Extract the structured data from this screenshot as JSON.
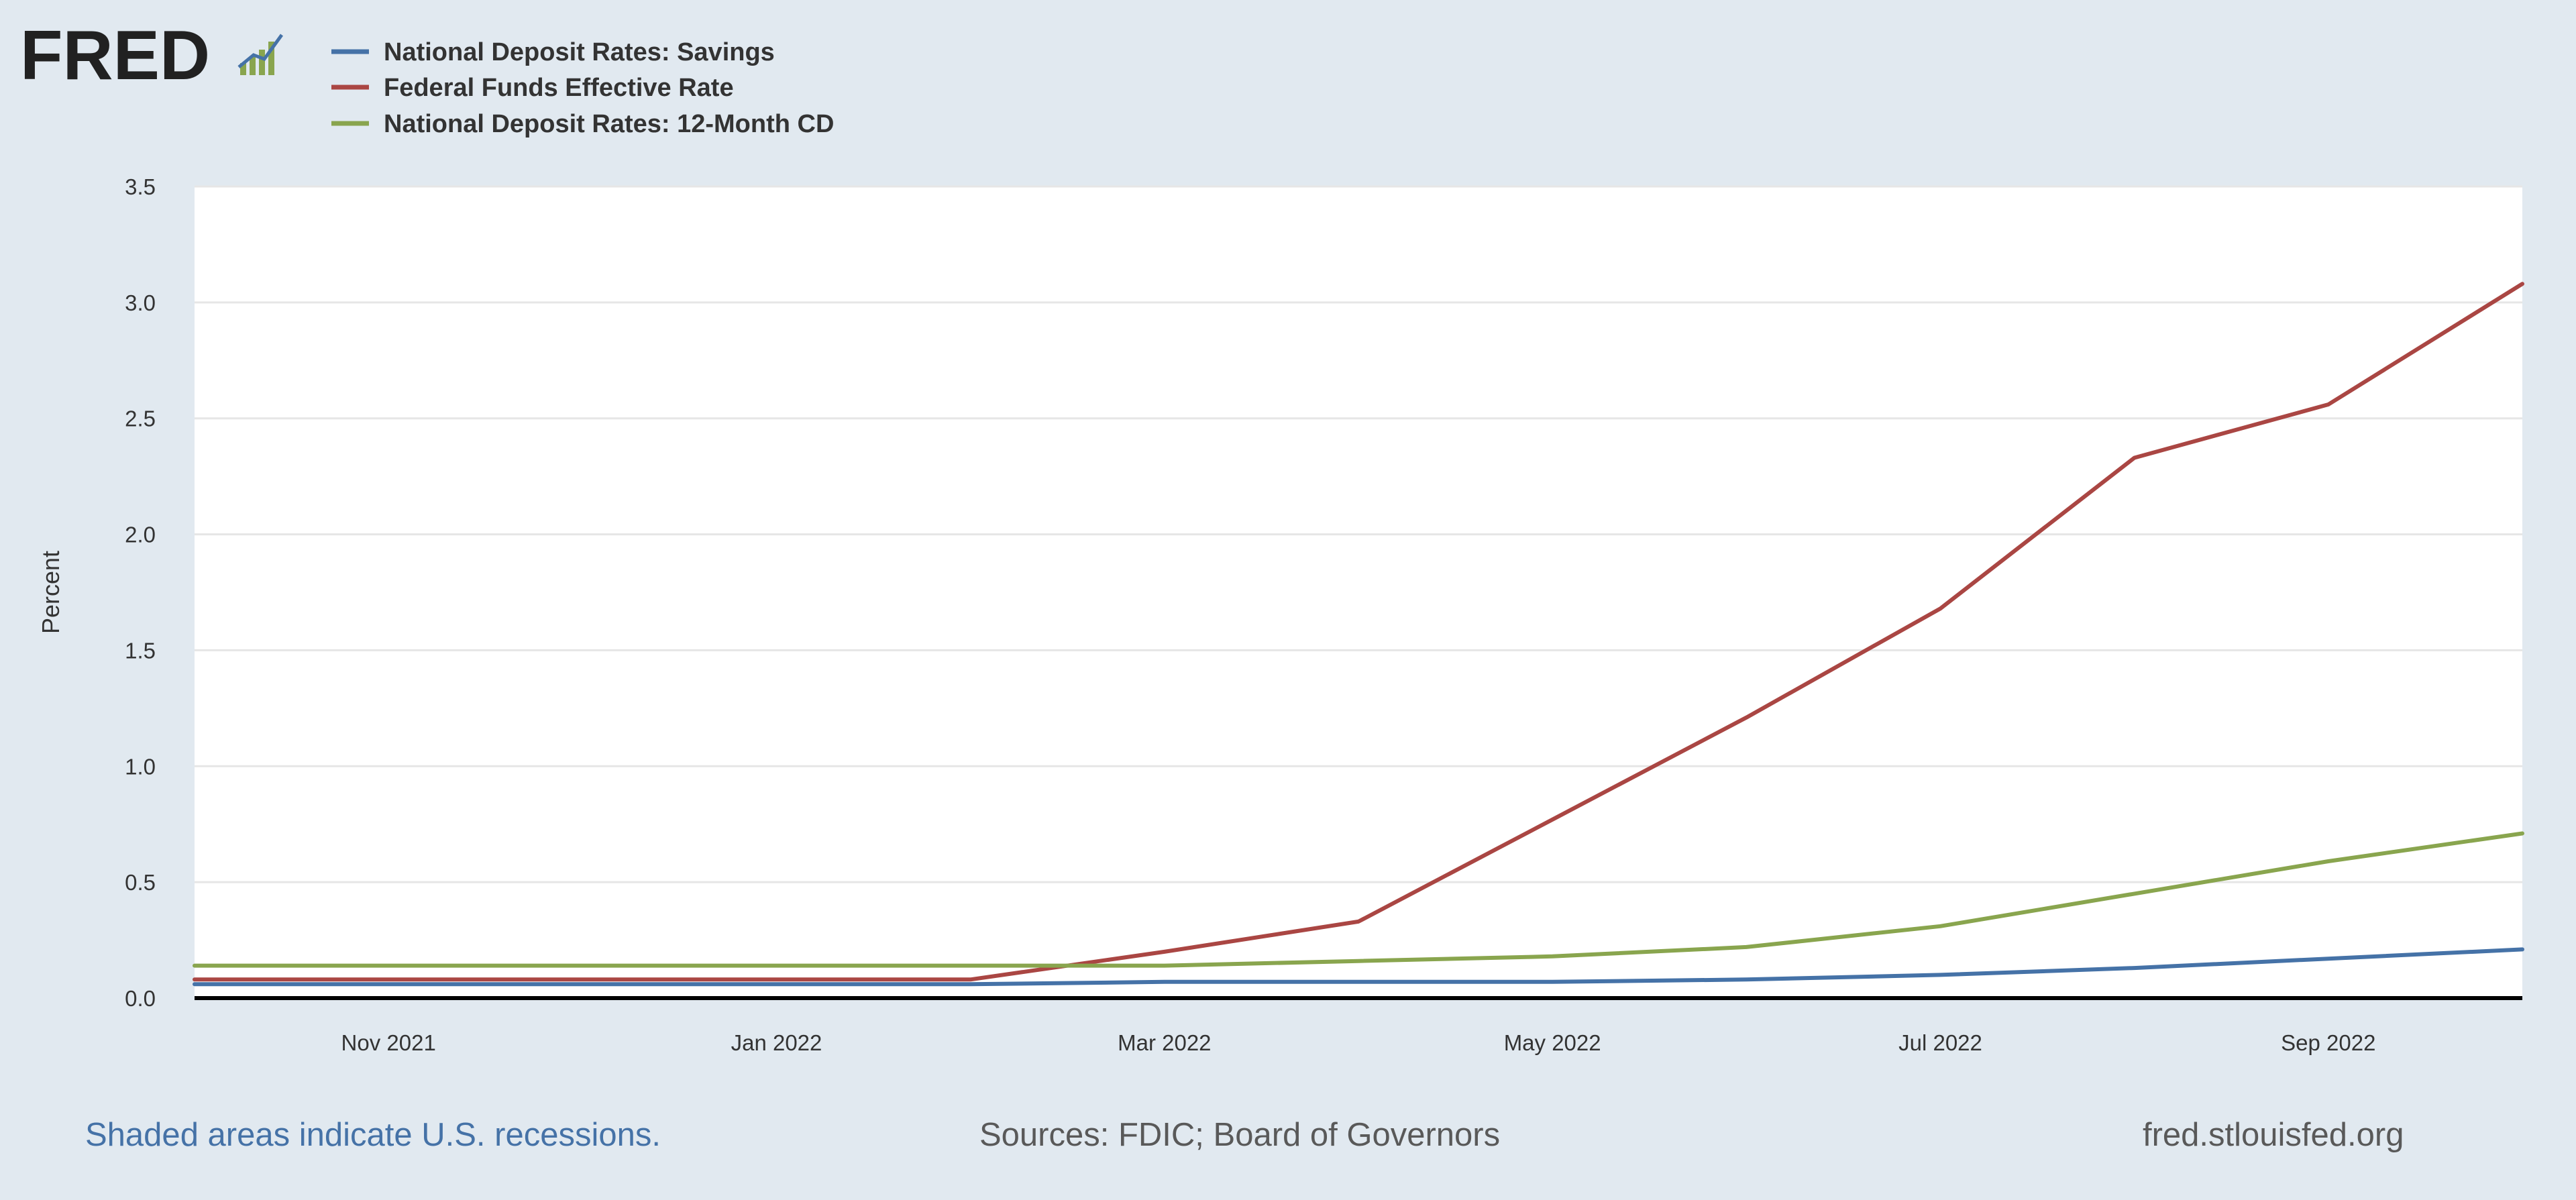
{
  "logo": {
    "text": "FRED"
  },
  "colors": {
    "background": "#e1e9f0",
    "plot_background": "#ffffff",
    "grid": "#e6e6e6",
    "savings": "#4572a7",
    "fed_funds": "#aa4643",
    "cd_12m": "#89a54e",
    "link": "#4572a7",
    "footer_text": "#595959"
  },
  "chart_data": {
    "type": "line",
    "title": "",
    "xlabel": "",
    "ylabel": "Percent",
    "ylim": [
      0,
      3.5
    ],
    "yticks": [
      "0.0",
      "0.5",
      "1.0",
      "1.5",
      "2.0",
      "2.5",
      "3.0",
      "3.5"
    ],
    "xlim": [
      "2021-10",
      "2022-10"
    ],
    "xticks": [
      {
        "label": "Nov 2021",
        "date": "2021-11"
      },
      {
        "label": "Jan 2022",
        "date": "2022-01"
      },
      {
        "label": "Mar 2022",
        "date": "2022-03"
      },
      {
        "label": "May 2022",
        "date": "2022-05"
      },
      {
        "label": "Jul 2022",
        "date": "2022-07"
      },
      {
        "label": "Sep 2022",
        "date": "2022-09"
      }
    ],
    "grid": true,
    "legend_position": "top-left",
    "x": [
      "2021-10",
      "2021-11",
      "2021-12",
      "2022-01",
      "2022-02",
      "2022-03",
      "2022-04",
      "2022-05",
      "2022-06",
      "2022-07",
      "2022-08",
      "2022-09",
      "2022-10"
    ],
    "series": [
      {
        "name": "National Deposit Rates: Savings",
        "color": "#4572a7",
        "values": [
          0.06,
          0.06,
          0.06,
          0.06,
          0.06,
          0.07,
          0.07,
          0.07,
          0.08,
          0.1,
          0.13,
          0.17,
          0.21
        ]
      },
      {
        "name": "Federal Funds Effective Rate",
        "color": "#aa4643",
        "values": [
          0.08,
          0.08,
          0.08,
          0.08,
          0.08,
          0.2,
          0.33,
          0.77,
          1.21,
          1.68,
          2.33,
          2.56,
          3.08
        ]
      },
      {
        "name": "National Deposit Rates: 12-Month CD",
        "color": "#89a54e",
        "values": [
          0.14,
          0.14,
          0.14,
          0.14,
          0.14,
          0.14,
          0.16,
          0.18,
          0.22,
          0.31,
          0.45,
          0.59,
          0.71
        ]
      }
    ]
  },
  "footer": {
    "recessions_link": "Shaded areas indicate U.S. recessions.",
    "sources": "Sources: FDIC; Board of Governors",
    "site": "fred.stlouisfed.org"
  }
}
